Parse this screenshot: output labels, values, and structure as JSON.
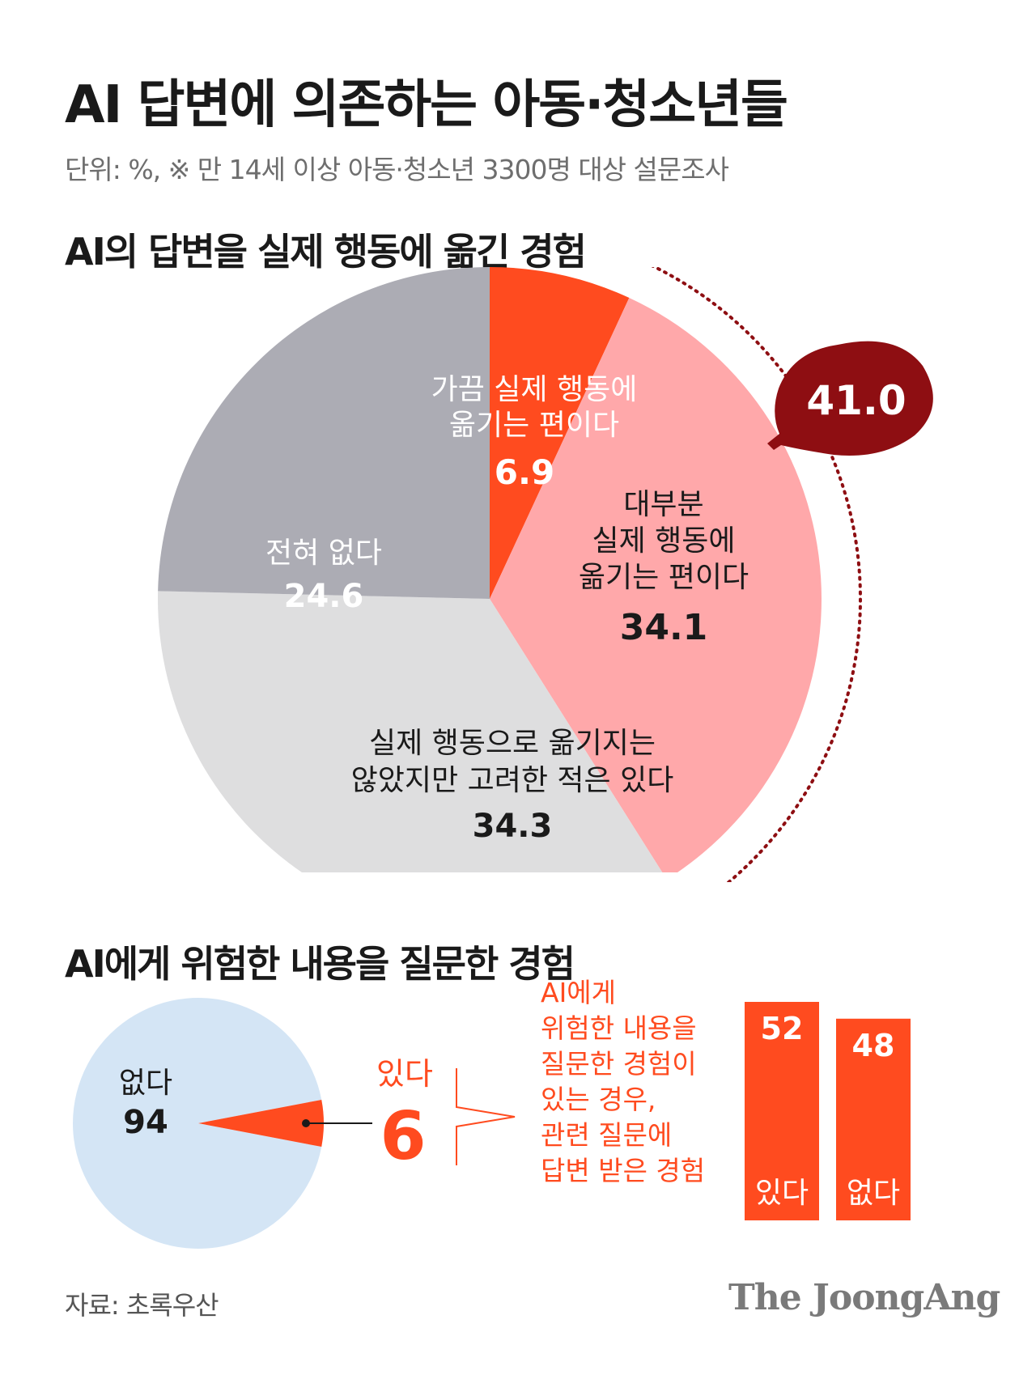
{
  "header": {
    "title": "AI 답변에 의존하는 아동·청소년들",
    "subtitle": "단위: %, ※ 만 14세 이상 아동·청소년 3300명 대상 설문조사"
  },
  "section1": {
    "title": "AI의 답변을 실제 행동에 옮긴 경험"
  },
  "section2": {
    "title": "AI에게 위험한 내용을 질문한 경험"
  },
  "chart_data": [
    {
      "type": "pie",
      "title": "AI의 답변을 실제 행동에 옮긴 경험",
      "slices": [
        {
          "label_lines": [
            "가끔 실제 행동에",
            "옮기는 편이다"
          ],
          "value": 6.9,
          "color": "#FF4B1F"
        },
        {
          "label_lines": [
            "대부분",
            "실제 행동에",
            "옮기는 편이다"
          ],
          "value": 34.1,
          "color": "#FFA8AA"
        },
        {
          "label_lines": [
            "실제 행동으로 옮기지는",
            "않았지만 고려한 적은 있다"
          ],
          "value": 34.3,
          "color": "#DEDEDF"
        },
        {
          "label_lines": [
            "전혀 없다"
          ],
          "value": 24.6,
          "color": "#ACACB4"
        }
      ],
      "annotation": {
        "value": "41.0",
        "color": "#8E0E12"
      }
    },
    {
      "type": "pie",
      "title": "AI에게 위험한 내용을 질문한 경험",
      "slices": [
        {
          "label": "없다",
          "value": 94,
          "color": "#D4E5F5"
        },
        {
          "label": "있다",
          "value": 6,
          "color": "#FF4B1F"
        }
      ]
    },
    {
      "type": "bar",
      "note_lines": [
        "AI에게",
        "위험한 내용을",
        "질문한 경험이",
        "있는 경우,",
        "관련 질문에",
        "답변 받은 경험"
      ],
      "categories": [
        "있다",
        "없다"
      ],
      "values": [
        52,
        48
      ],
      "color": "#FF4B1F"
    }
  ],
  "footer": {
    "source": "자료: 초록우산",
    "logo": "The JoongAng"
  }
}
